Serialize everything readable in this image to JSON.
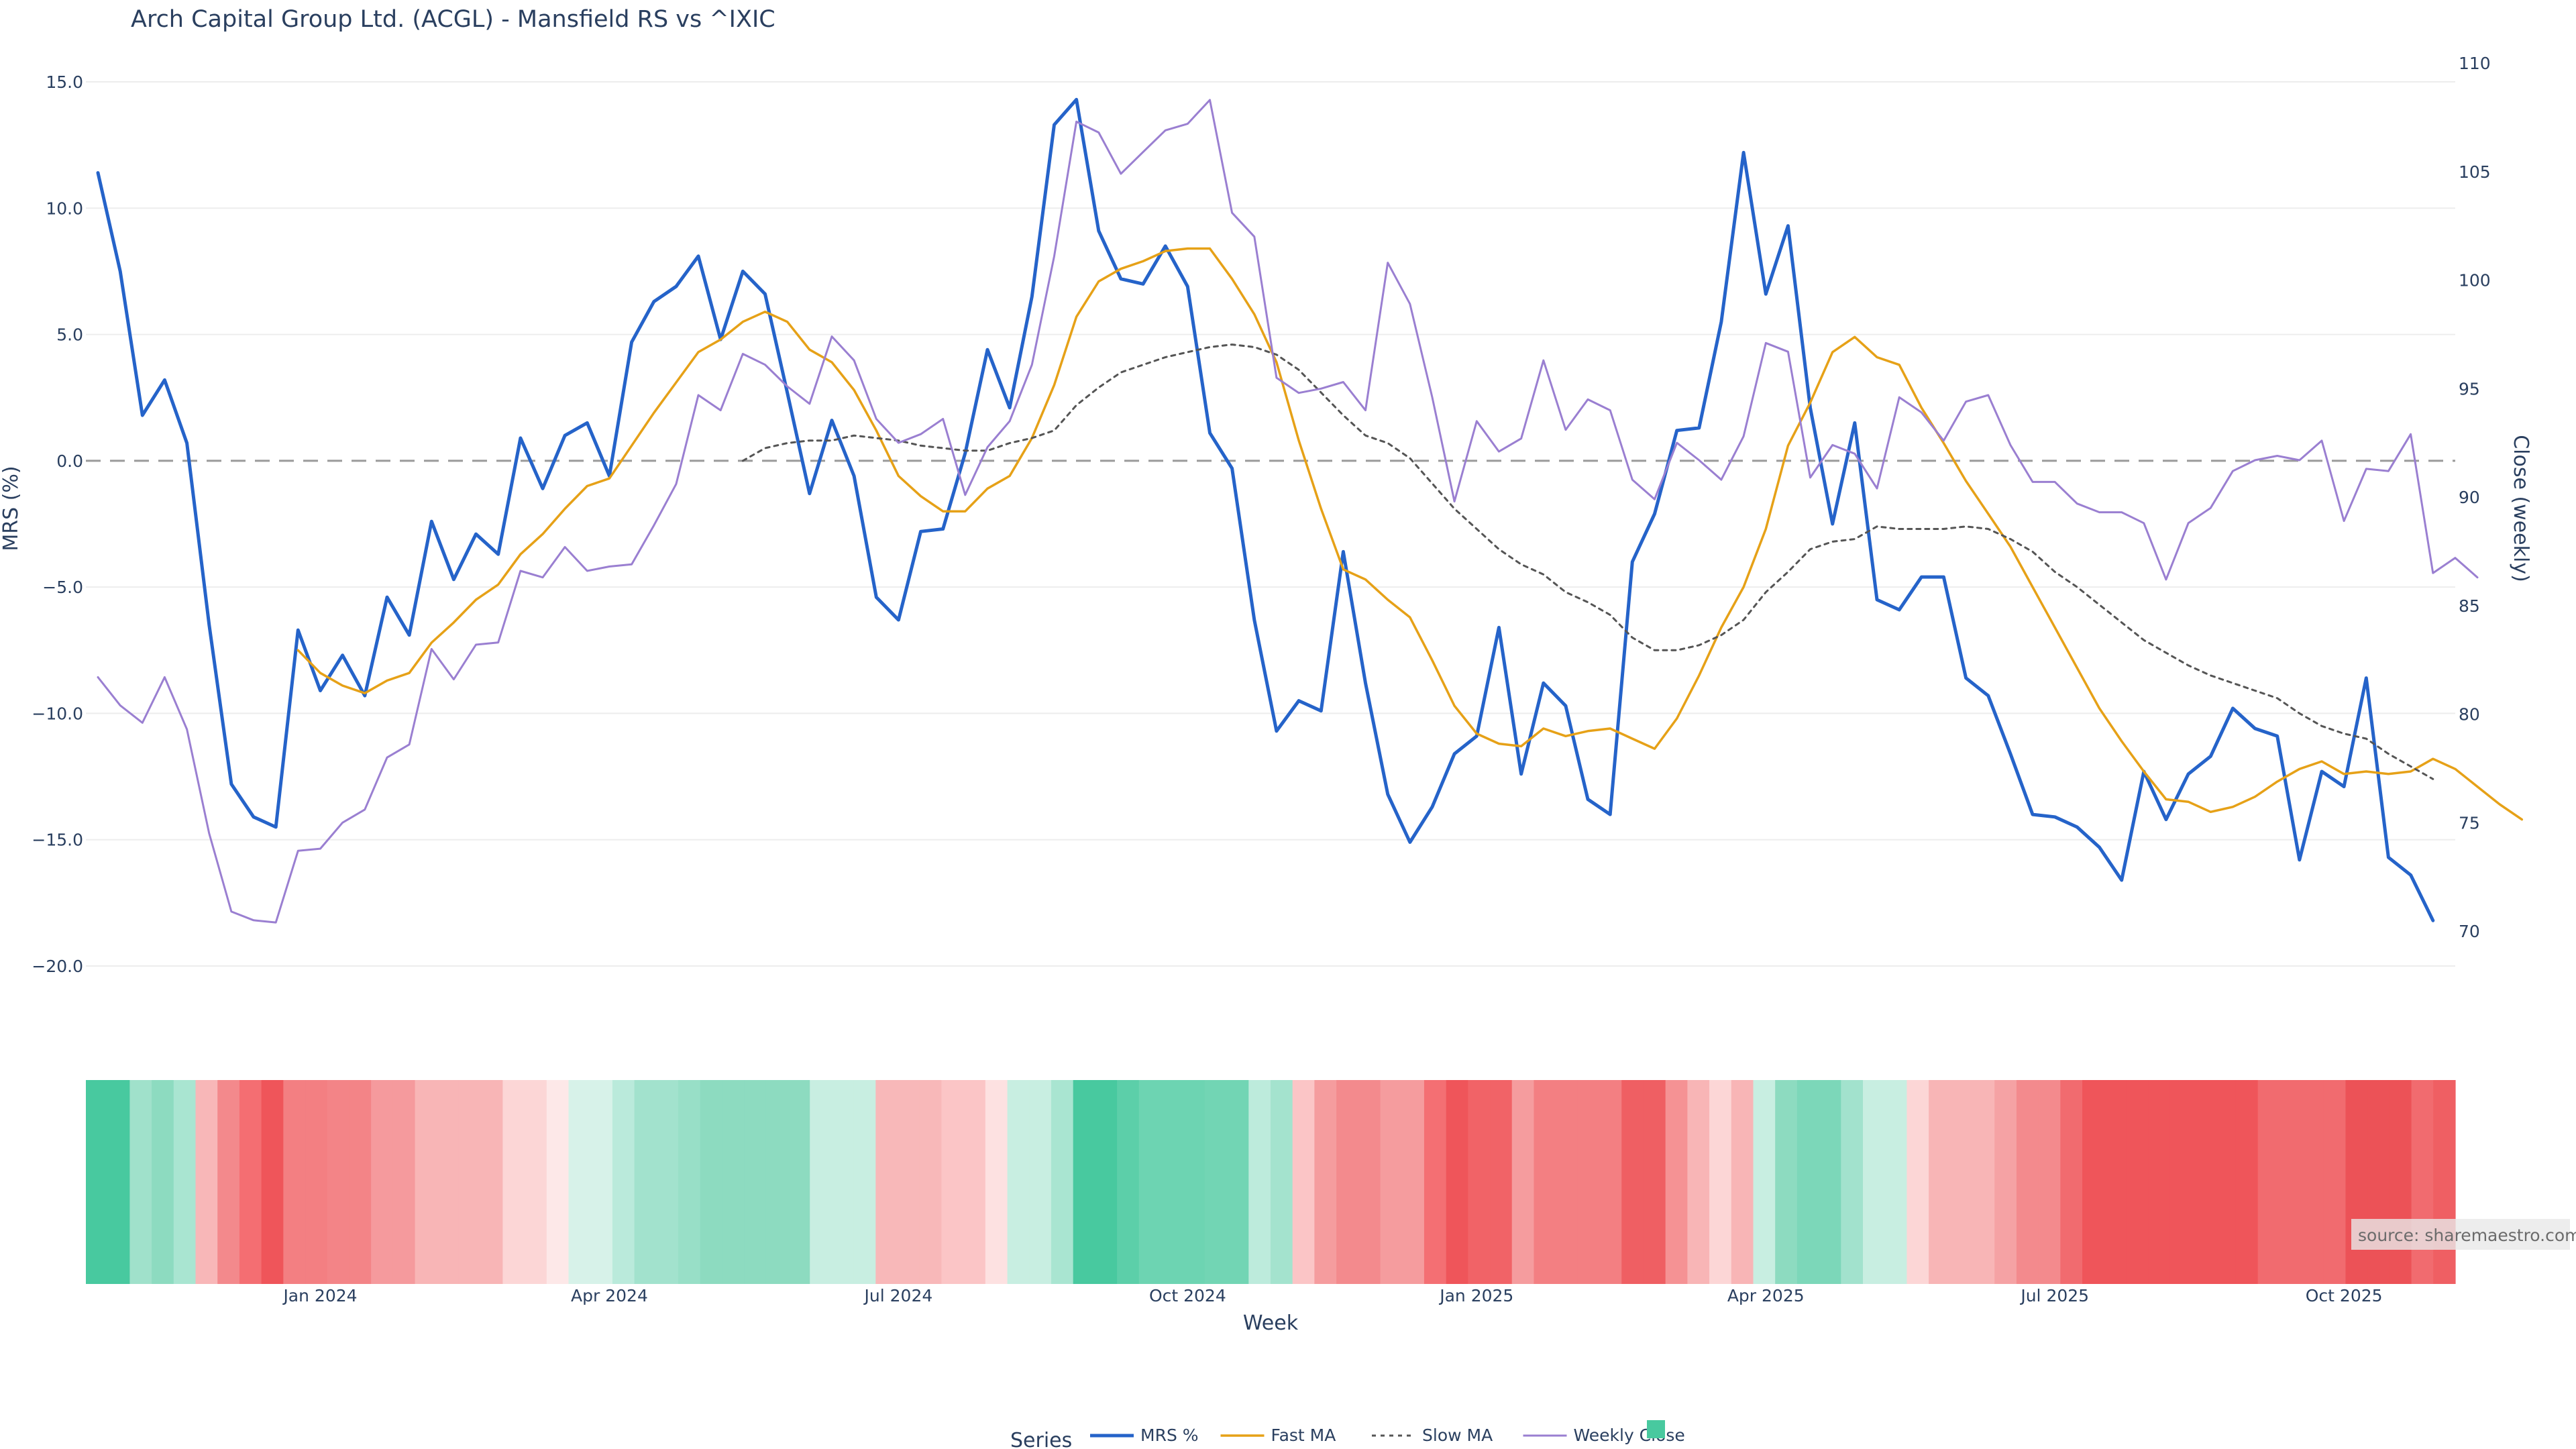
{
  "chart_data": {
    "type": "line",
    "title": "Arch Capital Group Ltd. (ACGL) - Mansfield RS vs ^IXIC",
    "xlabel": "Week",
    "ylabel_left": "MRS (%)",
    "ylabel_right": "Close (weekly)",
    "ylim_left": [
      -20,
      15
    ],
    "ylim_right": [
      70,
      110
    ],
    "yticks_left": [
      "15.0",
      "10.0",
      "5.0",
      "0.0",
      "−5.0",
      "−10.0",
      "−15.0",
      "−20.0"
    ],
    "yticks_left_values": [
      15,
      10,
      5,
      0,
      -5,
      -10,
      -15,
      -20
    ],
    "yticks_right": [
      "110",
      "105",
      "100",
      "95",
      "90",
      "85",
      "80",
      "75",
      "70"
    ],
    "yticks_right_values": [
      110,
      105,
      100,
      95,
      90,
      85,
      80,
      75,
      70
    ],
    "x_ticks": [
      {
        "label": "Jan 2024",
        "week": 10
      },
      {
        "label": "Apr 2024",
        "week": 23
      },
      {
        "label": "Jul 2024",
        "week": 36
      },
      {
        "label": "Oct 2024",
        "week": 49
      },
      {
        "label": "Jan 2025",
        "week": 62
      },
      {
        "label": "Apr 2025",
        "week": 75
      },
      {
        "label": "Jul 2025",
        "week": 88
      },
      {
        "label": "Oct 2025",
        "week": 101
      }
    ],
    "zero_line": 0,
    "grid": true,
    "legend_position": "bottom",
    "legend_title": "Series",
    "series": [
      {
        "name": "MRS %",
        "color": "#2563c9",
        "axis": "left",
        "start": 0,
        "values": [
          11.4,
          7.5,
          1.8,
          3.2,
          0.7,
          -6.5,
          -12.8,
          -14.1,
          -14.5,
          -6.7,
          -9.1,
          -7.7,
          -9.3,
          -5.4,
          -6.9,
          -2.4,
          -4.7,
          -2.9,
          -3.7,
          0.9,
          -1.1,
          1.0,
          1.5,
          -0.6,
          4.7,
          6.3,
          6.9,
          8.1,
          4.8,
          7.5,
          6.6,
          2.7,
          -1.3,
          1.6,
          -0.6,
          -5.4,
          -6.3,
          -2.8,
          -2.7,
          0.3,
          4.4,
          2.1,
          6.5,
          13.3,
          14.3,
          9.1,
          7.2,
          7.0,
          8.5,
          6.9,
          1.1,
          -0.3,
          -6.3,
          -10.7,
          -9.5,
          -9.9,
          -3.6,
          -8.8,
          -13.2,
          -15.1,
          -13.7,
          -11.6,
          -10.9,
          -6.6,
          -12.4,
          -8.8,
          -9.7,
          -13.4,
          -14.0,
          -4.0,
          -2.1,
          1.2,
          1.3,
          5.5,
          12.2,
          6.6,
          9.3,
          2.1,
          -2.5,
          1.5,
          -5.5,
          -5.9,
          -4.6,
          -4.6,
          -8.6,
          -9.3,
          -11.6,
          -14.0,
          -14.1,
          -14.5,
          -15.3,
          -16.6,
          -12.3,
          -14.2,
          -12.4,
          -11.7,
          -9.8,
          -10.6,
          -10.9,
          -15.8,
          -12.3,
          -12.9,
          -8.6,
          -15.7,
          -16.4,
          -18.2
        ]
      },
      {
        "name": "Fast MA",
        "color": "#e6a117",
        "axis": "left",
        "start": 9,
        "values": [
          -7.5,
          -8.4,
          -8.9,
          -9.2,
          -8.7,
          -8.4,
          -7.2,
          -6.4,
          -5.5,
          -4.9,
          -3.7,
          -2.9,
          -1.9,
          -1.0,
          -0.7,
          0.6,
          1.9,
          3.1,
          4.3,
          4.8,
          5.5,
          5.9,
          5.5,
          4.4,
          3.9,
          2.8,
          1.2,
          -0.6,
          -1.4,
          -2.0,
          -2.0,
          -1.1,
          -0.6,
          0.9,
          3.0,
          5.7,
          7.1,
          7.6,
          7.9,
          8.3,
          8.4,
          8.4,
          7.2,
          5.8,
          3.9,
          0.8,
          -1.9,
          -4.3,
          -4.7,
          -5.5,
          -6.2,
          -7.9,
          -9.7,
          -10.8,
          -11.2,
          -11.3,
          -10.6,
          -10.9,
          -10.7,
          -10.6,
          -11.0,
          -11.4,
          -10.2,
          -8.5,
          -6.6,
          -5.0,
          -2.7,
          0.6,
          2.3,
          4.3,
          4.9,
          4.1,
          3.8,
          2.1,
          0.7,
          -0.8,
          -2.1,
          -3.4,
          -5.0,
          -6.6,
          -8.2,
          -9.8,
          -11.1,
          -12.3,
          -13.4,
          -13.5,
          -13.9,
          -13.7,
          -13.3,
          -12.7,
          -12.2,
          -11.9,
          -12.4,
          -12.3,
          -12.4,
          -12.3,
          -11.8,
          -12.2,
          -12.9,
          -13.6,
          -14.2
        ]
      },
      {
        "name": "Slow MA",
        "color": "#555555",
        "axis": "left",
        "dashed": true,
        "start": 29,
        "values": [
          0.0,
          0.5,
          0.7,
          0.8,
          0.8,
          1.0,
          0.9,
          0.8,
          0.6,
          0.5,
          0.4,
          0.4,
          0.7,
          0.9,
          1.2,
          2.2,
          2.9,
          3.5,
          3.8,
          4.1,
          4.3,
          4.5,
          4.6,
          4.5,
          4.2,
          3.6,
          2.7,
          1.8,
          1.0,
          0.7,
          0.1,
          -0.9,
          -1.9,
          -2.7,
          -3.5,
          -4.1,
          -4.5,
          -5.2,
          -5.6,
          -6.1,
          -7.0,
          -7.5,
          -7.5,
          -7.3,
          -6.9,
          -6.3,
          -5.2,
          -4.4,
          -3.5,
          -3.2,
          -3.1,
          -2.6,
          -2.7,
          -2.7,
          -2.7,
          -2.6,
          -2.7,
          -3.1,
          -3.6,
          -4.4,
          -5.0,
          -5.7,
          -6.4,
          -7.1,
          -7.6,
          -8.1,
          -8.5,
          -8.8,
          -9.1,
          -9.4,
          -10.0,
          -10.5,
          -10.8,
          -11.0,
          -11.6,
          -12.1,
          -12.6
        ]
      },
      {
        "name": "Weekly Close",
        "color": "#9a7fd1",
        "axis": "right",
        "start": 0,
        "values": [
          81.7,
          80.4,
          79.6,
          81.7,
          79.3,
          74.5,
          70.9,
          70.5,
          70.4,
          73.7,
          73.8,
          75.0,
          75.6,
          78.0,
          78.6,
          83.0,
          81.6,
          83.2,
          83.3,
          86.6,
          86.3,
          87.7,
          86.6,
          86.8,
          86.9,
          88.7,
          90.6,
          94.7,
          94.0,
          96.6,
          96.1,
          95.1,
          94.3,
          97.4,
          96.3,
          93.6,
          92.5,
          92.9,
          93.6,
          90.1,
          92.3,
          93.5,
          96.1,
          101.1,
          107.3,
          106.8,
          104.9,
          105.9,
          106.9,
          107.2,
          108.3,
          103.1,
          102.0,
          95.5,
          94.8,
          95.0,
          95.3,
          94.0,
          100.8,
          98.9,
          94.6,
          89.8,
          93.5,
          92.1,
          92.7,
          96.3,
          93.1,
          94.5,
          94.0,
          90.8,
          89.9,
          92.5,
          91.7,
          90.8,
          92.8,
          97.1,
          96.7,
          90.9,
          92.4,
          92.0,
          90.4,
          94.6,
          93.9,
          92.6,
          94.4,
          94.7,
          92.4,
          90.7,
          90.7,
          89.7,
          89.3,
          89.3,
          88.8,
          86.2,
          88.8,
          89.5,
          91.2,
          91.7,
          91.9,
          91.7,
          92.6,
          88.9,
          91.3,
          91.2,
          92.9,
          86.5,
          87.2,
          86.3
        ]
      }
    ],
    "heatmap_colors": [
      "#48c99f",
      "#48c99f",
      "#a0e1cb",
      "#8ddbc0",
      "#a9e5d1",
      "#f8b7b8",
      "#f3898c",
      "#f46e72",
      "#ef555a",
      "#f37f82",
      "#f37f82",
      "#f38487",
      "#f38487",
      "#f59a9d",
      "#f59a9d",
      "#f8b5b6",
      "#f8b5b6",
      "#f8b5b6",
      "#f8b5b6",
      "#fcd6d6",
      "#fcd6d6",
      "#fde8e8",
      "#d7f2e9",
      "#d7f2e9",
      "#baeadb",
      "#a2e2cd",
      "#a2e2cd",
      "#98dfc7",
      "#8ddbc0",
      "#8ddbc0",
      "#8ddbc0",
      "#8ddbc0",
      "#8ddbc0",
      "#c8eee1",
      "#c8eee1",
      "#c8eee1",
      "#f8b8b9",
      "#f8b8b9",
      "#f8b8b9",
      "#fbc5c6",
      "#fbc5c6",
      "#fde1e1",
      "#c8eee1",
      "#c8eee1",
      "#a9e5d1",
      "#48c99f",
      "#48c99f",
      "#5ccfa9",
      "#6dd4b2",
      "#6dd4b2",
      "#6dd4b2",
      "#72d5b4",
      "#72d5b4",
      "#bdebdc",
      "#a4e3ce",
      "#fbc5c6",
      "#f59c9e",
      "#f38a8d",
      "#f38a8d",
      "#f59c9e",
      "#f59c9e",
      "#f46f73",
      "#ef555a",
      "#f16367",
      "#f16367",
      "#f59c9e",
      "#f37f82",
      "#f37f82",
      "#f37f82",
      "#f37f82",
      "#ef5f63",
      "#ef5f63",
      "#f59294",
      "#f8b5b6",
      "#fcd6d6",
      "#f8b5b6",
      "#c8eee1",
      "#8ddbc0",
      "#7cd7b9",
      "#7cd7b9",
      "#a2e2cd",
      "#c8eee1",
      "#c8eee1",
      "#fcd6d6",
      "#f8b5b6",
      "#f8b5b6",
      "#f8b5b6",
      "#f5a2a4",
      "#f38a8d",
      "#f38a8d",
      "#f16b6f",
      "#ef555a",
      "#ef555a",
      "#ef555a",
      "#ef555a",
      "#ef555a",
      "#ef555a",
      "#ef555a",
      "#ef555a",
      "#f16b6f",
      "#f16b6f",
      "#f16b6f",
      "#f16b6f",
      "#ec5257",
      "#ec5257",
      "#ec5257",
      "#f16b6f",
      "#ef5f63"
    ],
    "legend_swatch_color": "#48c99f",
    "source_note": "source: sharemaestro.com"
  }
}
